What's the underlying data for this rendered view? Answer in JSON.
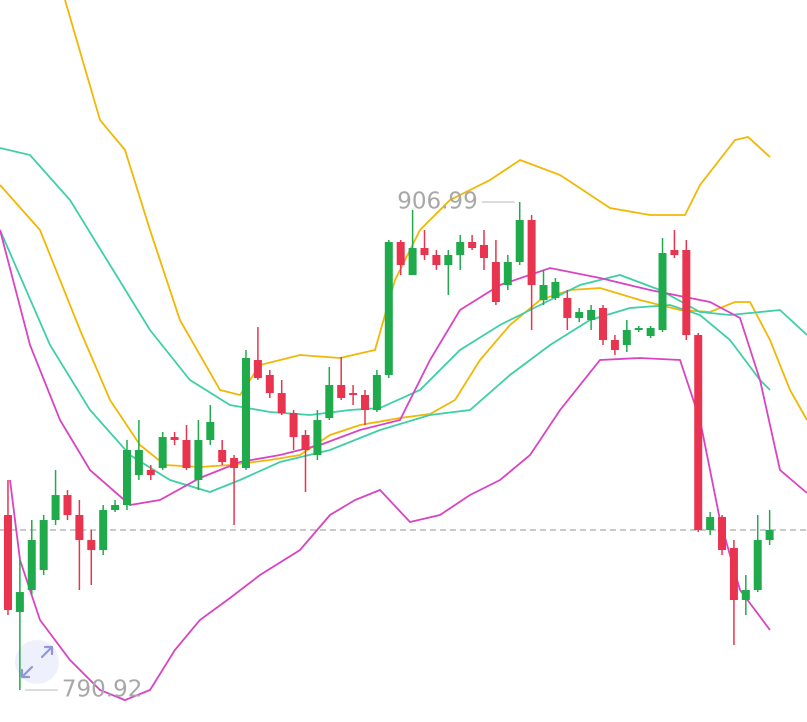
{
  "chart_data": {
    "type": "candlestick",
    "xlim": [
      -0.67,
      67.14
    ],
    "ylim": [
      783.31,
      955.03
    ],
    "up_color": "#1fab4c",
    "down_color": "#e8344e",
    "last_line_color": "#aaaaaa",
    "open": [
      832.54,
      809.47,
      814.7,
      819.46,
      831.35,
      837.29,
      832.54,
      826.59,
      824.21,
      833.73,
      834.92,
      842.05,
      843.24,
      843.72,
      851.09,
      850.38,
      840.86,
      850.38,
      848.0,
      846.09,
      843.72,
      869.4,
      865.84,
      861.55,
      856.8,
      851.57,
      846.81,
      855.61,
      863.46,
      861.55,
      861.08,
      857.51,
      865.84,
      897.47,
      889.62,
      896.04,
      894.38,
      892.0,
      894.38,
      897.47,
      896.76,
      892.71,
      887.24,
      892.71,
      902.7,
      883.67,
      884.15,
      884.15,
      879.39,
      878.92,
      881.77,
      874.16,
      872.97,
      876.54,
      875.11,
      876.54,
      895.57,
      895.57,
      875.35,
      828.97,
      832.06,
      824.69,
      812.32,
      814.7,
      826.59
    ],
    "high": [
      840.86,
      821.83,
      831.35,
      832.54,
      843.24,
      838.48,
      836.1,
      828.97,
      834.92,
      836.1,
      850.38,
      855.13,
      844.43,
      852.28,
      852.28,
      853.94,
      855.13,
      858.7,
      850.38,
      846.81,
      871.78,
      877.25,
      867.03,
      864.65,
      857.51,
      852.75,
      857.51,
      867.74,
      870.12,
      863.46,
      862.27,
      867.03,
      897.95,
      897.95,
      905.08,
      900.32,
      895.57,
      895.57,
      899.14,
      899.14,
      900.32,
      897.95,
      894.38,
      906.99,
      903.89,
      890.81,
      888.91,
      886.05,
      881.77,
      882.49,
      882.49,
      875.35,
      878.92,
      877.49,
      877.49,
      898.42,
      900.32,
      897.95,
      875.83,
      833.25,
      832.54,
      826.59,
      818.27,
      832.54,
      833.73
    ],
    "low": [
      808.75,
      790.92,
      813.51,
      818.27,
      830.16,
      831.35,
      814.7,
      815.89,
      823.02,
      833.25,
      833.73,
      840.86,
      840.86,
      843.24,
      849.19,
      843.24,
      838.48,
      849.19,
      844.43,
      830.16,
      843.24,
      864.65,
      860.37,
      856.32,
      848.0,
      838.01,
      845.62,
      855.13,
      859.89,
      858.7,
      853.94,
      857.04,
      865.12,
      889.62,
      889.62,
      893.19,
      890.81,
      884.86,
      890.81,
      895.57,
      890.81,
      882.49,
      886.05,
      892.0,
      876.54,
      882.49,
      883.67,
      876.54,
      878.44,
      876.54,
      872.97,
      870.59,
      871.31,
      876.06,
      874.64,
      876.06,
      893.66,
      874.16,
      828.49,
      827.78,
      823.02,
      801.62,
      808.75,
      814.22,
      825.4
    ],
    "close": [
      809.94,
      814.22,
      826.59,
      831.35,
      837.29,
      832.54,
      826.59,
      824.21,
      833.73,
      834.92,
      848.0,
      848.0,
      842.05,
      851.09,
      850.38,
      843.72,
      850.38,
      854.66,
      845.14,
      843.72,
      869.88,
      865.12,
      861.55,
      856.8,
      851.09,
      848.0,
      855.13,
      863.46,
      860.37,
      861.08,
      857.51,
      865.84,
      897.47,
      892.0,
      896.04,
      894.38,
      892.0,
      894.38,
      897.47,
      896.04,
      893.66,
      883.2,
      892.71,
      902.7,
      887.24,
      887.24,
      887.96,
      879.39,
      880.82,
      881.3,
      874.16,
      871.78,
      876.54,
      877.02,
      877.02,
      894.85,
      894.38,
      875.35,
      828.97,
      832.06,
      824.21,
      812.32,
      814.7,
      826.59,
      828.97
    ],
    "lines": [
      {
        "color": "#f2b705",
        "x": [
          4.79,
          7.73,
          9.83,
          11.93,
          14.45,
          17.82,
          19.5,
          21.18,
          24.54,
          27.9,
          30.84,
          32.52,
          34.62,
          37.14,
          40.5,
          43.03,
          46.39,
          50.59,
          53.95,
          56.89,
          58.15,
          61.09,
          62.18,
          64.03
        ],
        "values": [
          955.03,
          926.49,
          919.35,
          900.32,
          878.92,
          862.27,
          861.08,
          868.21,
          870.59,
          869.88,
          871.78,
          888.43,
          900.32,
          907.46,
          912.22,
          916.97,
          913.41,
          905.56,
          903.89,
          903.89,
          911.03,
          921.73,
          922.44,
          917.69
        ]
      },
      {
        "color": "#f2b705",
        "x": [
          -0.67,
          2.69,
          6.05,
          8.57,
          11.09,
          13.19,
          16.13,
          18.66,
          22.02,
          24.54,
          27.06,
          29.58,
          32.94,
          35.46,
          37.56,
          39.66,
          42.18,
          44.71,
          47.23,
          49.75,
          53.11,
          56.47,
          58.99,
          61.09,
          62.35,
          64.03,
          65.71,
          67.14
        ],
        "values": [
          911.03,
          900.32,
          876.54,
          859.89,
          849.19,
          844.43,
          843.95,
          844.43,
          845.62,
          846.81,
          851.57,
          853.94,
          855.61,
          856.56,
          859.89,
          869.4,
          877.73,
          883.67,
          886.05,
          886.53,
          883.67,
          881.3,
          880.82,
          883.2,
          883.2,
          874.16,
          862.27,
          855.13
        ]
      },
      {
        "color": "#3fcfa6",
        "x": [
          -0.67,
          1.85,
          5.21,
          8.57,
          11.93,
          15.29,
          18.66,
          22.02,
          25.38,
          28.74,
          31.26,
          34.62,
          37.98,
          41.34,
          44.71,
          48.07,
          51.43,
          54.79,
          58.15,
          60.67,
          63.19,
          64.87,
          67.14
        ],
        "values": [
          919.83,
          918.16,
          907.46,
          892.0,
          876.54,
          864.65,
          858.7,
          857.04,
          856.32,
          857.51,
          857.99,
          862.27,
          871.78,
          877.73,
          882.49,
          887.24,
          889.62,
          886.05,
          880.82,
          880.11,
          880.82,
          881.3,
          875.35
        ]
      },
      {
        "color": "#3fcfa6",
        "x": [
          -0.67,
          3.53,
          6.89,
          10.25,
          13.61,
          16.97,
          19.5,
          22.86,
          27.06,
          31.26,
          35.46,
          38.82,
          42.18,
          45.55,
          48.91,
          52.27,
          55.63,
          58.15,
          60.67,
          63.19,
          64.03
        ],
        "values": [
          900.32,
          872.97,
          857.51,
          846.81,
          840.86,
          838.01,
          840.86,
          845.14,
          848.0,
          852.75,
          856.32,
          857.51,
          865.84,
          872.97,
          878.92,
          881.77,
          882.49,
          880.11,
          874.16,
          864.65,
          862.27
        ]
      },
      {
        "color": "#d844c4",
        "x": [
          -0.67,
          1.85,
          4.37,
          6.89,
          10.25,
          12.77,
          16.13,
          19.5,
          22.86,
          26.22,
          29.58,
          32.94,
          35.46,
          37.98,
          41.34,
          45.55,
          49.75,
          53.95,
          57.31,
          58.99,
          61.51,
          63.19,
          64.87,
          67.14
        ],
        "values": [
          900.32,
          872.97,
          855.13,
          843.24,
          834.92,
          836.1,
          841.34,
          845.14,
          846.81,
          849.19,
          852.75,
          855.13,
          869.4,
          881.3,
          887.24,
          891.29,
          888.91,
          886.05,
          884.15,
          883.2,
          879.39,
          864.65,
          843.24,
          837.77
        ]
      },
      {
        "color": "#d844c4",
        "x": [
          0.17,
          1.01,
          2.69,
          5.21,
          7.73,
          9.83,
          11.93,
          14.03,
          16.13,
          18.66,
          21.18,
          24.54,
          27.06,
          29.16,
          31.26,
          33.78,
          36.3,
          38.82,
          41.34,
          43.87,
          46.39,
          49.75,
          53.11,
          56.47,
          58.15,
          59.83,
          61.51,
          64.03
        ],
        "values": [
          840.86,
          821.83,
          807.56,
          798.05,
          790.92,
          788.53,
          790.92,
          800.43,
          807.56,
          812.8,
          818.27,
          824.21,
          832.54,
          836.1,
          838.48,
          830.87,
          832.54,
          837.29,
          840.86,
          846.81,
          857.51,
          869.4,
          869.88,
          869.4,
          855.13,
          831.35,
          814.7,
          805.18
        ]
      }
    ]
  }
}
